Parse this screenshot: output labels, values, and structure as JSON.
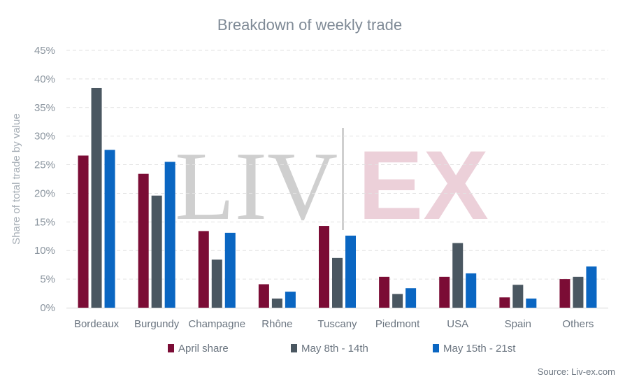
{
  "chart_data": {
    "type": "bar",
    "title": "Breakdown of weekly trade",
    "ylabel": "Share of total trade by value",
    "xlabel": "",
    "ylim": [
      0,
      45
    ],
    "yticks": [
      "0%",
      "5%",
      "10%",
      "15%",
      "20%",
      "25%",
      "30%",
      "35%",
      "40%",
      "45%"
    ],
    "categories": [
      "Bordeaux",
      "Burgundy",
      "Champagne",
      "Rhône",
      "Tuscany",
      "Piedmont",
      "USA",
      "Spain",
      "Others"
    ],
    "series": [
      {
        "name": "April share",
        "color": "#7b0c35",
        "values": [
          26.6,
          23.4,
          13.4,
          4.1,
          14.3,
          5.4,
          5.4,
          1.8,
          5.0
        ]
      },
      {
        "name": "May 8th - 14th",
        "color": "#4a5761",
        "values": [
          38.4,
          19.6,
          8.4,
          1.6,
          8.7,
          2.4,
          11.3,
          4.0,
          5.4
        ]
      },
      {
        "name": "May 15th - 21st",
        "color": "#0a66c2",
        "values": [
          27.6,
          25.5,
          13.1,
          2.8,
          12.6,
          3.4,
          6.0,
          1.6,
          7.2
        ]
      }
    ],
    "grid": true,
    "legend_position": "bottom"
  },
  "watermark": {
    "left": "LIV",
    "right": "EX"
  },
  "source": "Source: Liv-ex.com",
  "colors": {
    "grid": "#e2e2e2",
    "axis": "#d5d5d5"
  }
}
